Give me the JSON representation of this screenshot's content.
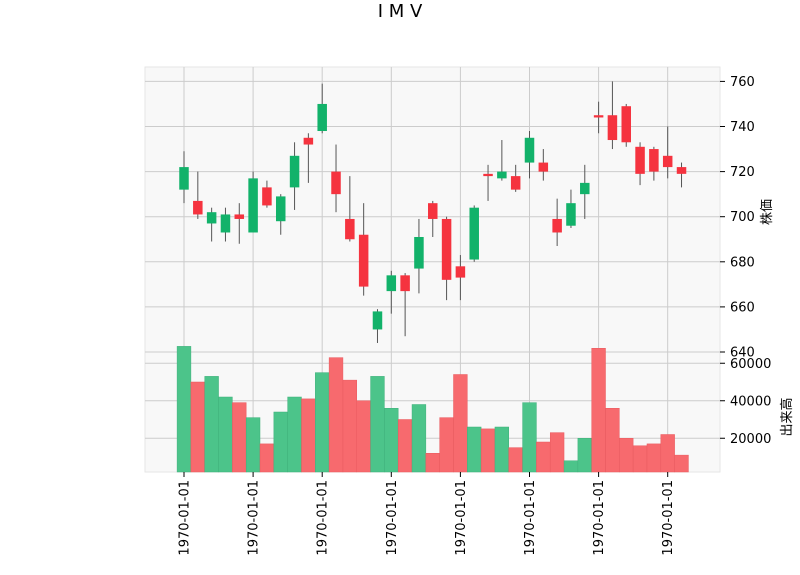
{
  "chart_data": [
    {
      "type": "candlestick",
      "title": "I M V",
      "ylabel": "株価",
      "ylim": [
        640,
        765
      ],
      "yticks": [
        640,
        660,
        680,
        700,
        720,
        740,
        760
      ],
      "xticks": [
        "1970-01-01",
        "1970-01-01",
        "1970-01-01",
        "1970-01-01",
        "1970-01-01",
        "1970-01-01",
        "1970-01-01",
        "1970-01-01"
      ],
      "tick_positions": [
        0,
        5,
        10,
        15,
        20,
        25,
        30,
        35
      ],
      "grid": true,
      "up_color": "#12b26a",
      "down_color": "#f5333f",
      "candles": [
        {
          "open": 712,
          "high": 729,
          "low": 706,
          "close": 722
        },
        {
          "open": 707,
          "high": 720,
          "low": 699,
          "close": 701
        },
        {
          "open": 697,
          "high": 704,
          "low": 689,
          "close": 702
        },
        {
          "open": 693,
          "high": 704,
          "low": 689,
          "close": 701
        },
        {
          "open": 701,
          "high": 706,
          "low": 688,
          "close": 699
        },
        {
          "open": 693,
          "high": 720,
          "low": 693,
          "close": 717
        },
        {
          "open": 713,
          "high": 716,
          "low": 704,
          "close": 705
        },
        {
          "open": 698,
          "high": 710,
          "low": 692,
          "close": 709
        },
        {
          "open": 713,
          "high": 733,
          "low": 703,
          "close": 727
        },
        {
          "open": 735,
          "high": 737,
          "low": 715,
          "close": 732
        },
        {
          "open": 738,
          "high": 759,
          "low": 737,
          "close": 750
        },
        {
          "open": 720,
          "high": 732,
          "low": 702,
          "close": 710
        },
        {
          "open": 699,
          "high": 718,
          "low": 689,
          "close": 690
        },
        {
          "open": 692,
          "high": 706,
          "low": 665,
          "close": 669
        },
        {
          "open": 650,
          "high": 659,
          "low": 644,
          "close": 658
        },
        {
          "open": 667,
          "high": 676,
          "low": 657,
          "close": 674
        },
        {
          "open": 674,
          "high": 675,
          "low": 647,
          "close": 667
        },
        {
          "open": 677,
          "high": 699,
          "low": 666,
          "close": 691
        },
        {
          "open": 706,
          "high": 707,
          "low": 691,
          "close": 699
        },
        {
          "open": 699,
          "high": 700,
          "low": 663,
          "close": 672
        },
        {
          "open": 678,
          "high": 683,
          "low": 663,
          "close": 673
        },
        {
          "open": 681,
          "high": 705,
          "low": 680,
          "close": 704
        },
        {
          "open": 719,
          "high": 723,
          "low": 707,
          "close": 718
        },
        {
          "open": 717,
          "high": 734,
          "low": 716,
          "close": 720
        },
        {
          "open": 718,
          "high": 723,
          "low": 711,
          "close": 712
        },
        {
          "open": 724,
          "high": 738,
          "low": 717,
          "close": 735
        },
        {
          "open": 724,
          "high": 730,
          "low": 716,
          "close": 720
        },
        {
          "open": 699,
          "high": 708,
          "low": 687,
          "close": 693
        },
        {
          "open": 696,
          "high": 712,
          "low": 695,
          "close": 706
        },
        {
          "open": 710,
          "high": 723,
          "low": 699,
          "close": 715
        },
        {
          "open": 745,
          "high": 751,
          "low": 737,
          "close": 744
        },
        {
          "open": 745,
          "high": 760,
          "low": 730,
          "close": 734
        },
        {
          "open": 749,
          "high": 750,
          "low": 731,
          "close": 733
        },
        {
          "open": 731,
          "high": 733,
          "low": 714,
          "close": 719
        },
        {
          "open": 730,
          "high": 731,
          "low": 716,
          "close": 720
        },
        {
          "open": 727,
          "high": 740,
          "low": 717,
          "close": 722
        },
        {
          "open": 722,
          "high": 724,
          "low": 713,
          "close": 719
        }
      ]
    },
    {
      "type": "bar",
      "ylabel": "出来高",
      "ylim": [
        2000,
        66000
      ],
      "yticks": [
        20000,
        40000,
        60000
      ],
      "grid": true,
      "up_color": "#4cc48a",
      "down_color": "#f76a6e",
      "volumes": [
        69000,
        50000,
        53000,
        42000,
        39000,
        31000,
        17000,
        34000,
        42000,
        41000,
        55000,
        63000,
        51000,
        40000,
        53000,
        36000,
        30000,
        38000,
        12000,
        31000,
        54000,
        26000,
        25000,
        26000,
        15000,
        39000,
        18000,
        23000,
        8000,
        20000,
        68000,
        36000,
        20000,
        16000,
        17000,
        22000,
        11000
      ]
    }
  ]
}
